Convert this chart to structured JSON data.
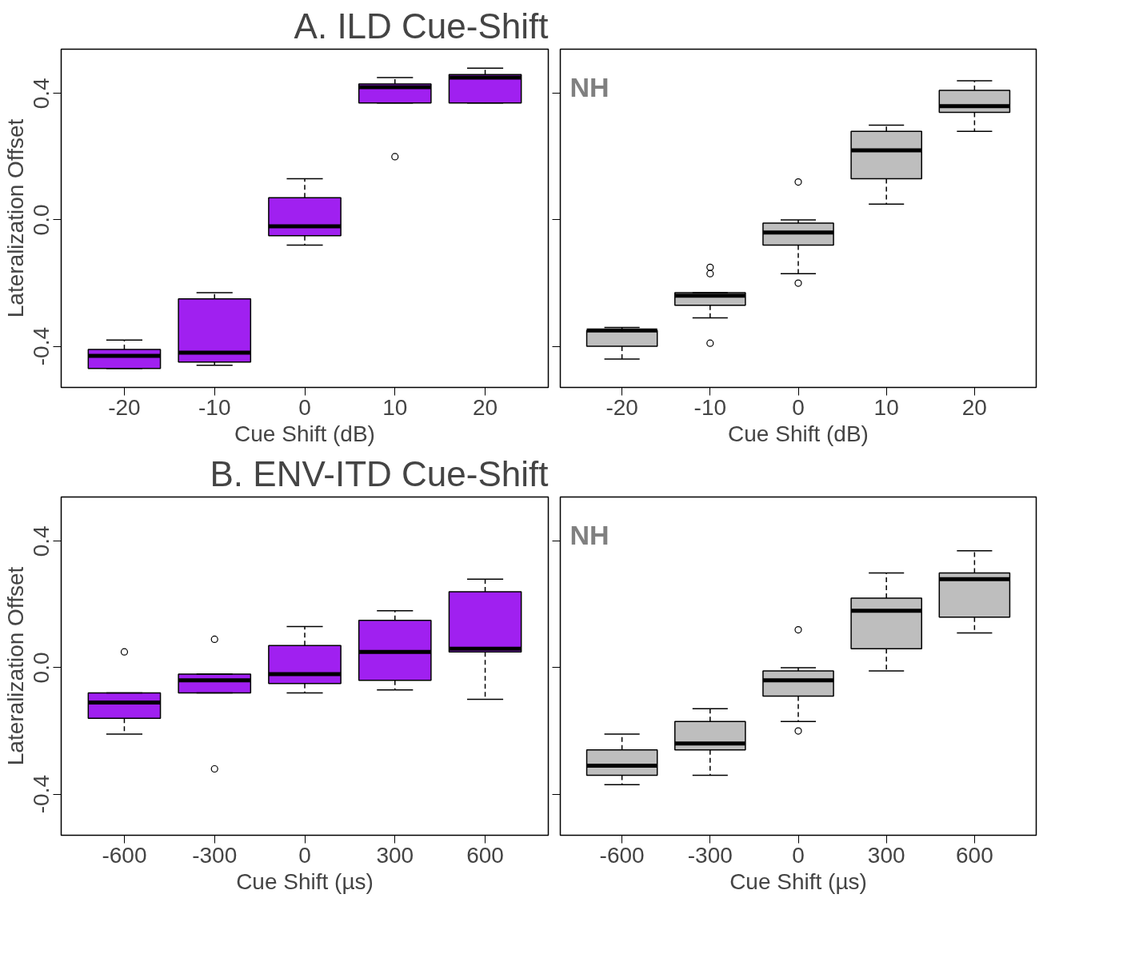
{
  "chart_data": [
    {
      "type": "box",
      "title": "A. ILD Cue-Shift",
      "xlabel": "Cue Shift (dB)",
      "ylabel": "Lateralization Offset",
      "categories": [
        "-20",
        "-10",
        "0",
        "10",
        "20"
      ],
      "color": "#a020f0",
      "ylim": [
        -0.53,
        0.54
      ],
      "yticks": [
        -0.4,
        {
          "value": 0,
          "label": "0.0"
        },
        0.4
      ],
      "grid": false,
      "boxes": [
        {
          "low": -0.47,
          "q1": -0.47,
          "median": -0.43,
          "q3": -0.41,
          "high": -0.38
        },
        {
          "low": -0.46,
          "q1": -0.45,
          "median": -0.42,
          "q3": -0.25,
          "high": -0.23
        },
        {
          "low": -0.08,
          "q1": -0.05,
          "median": -0.02,
          "q3": 0.07,
          "high": 0.13
        },
        {
          "low": 0.37,
          "q1": 0.37,
          "median": 0.42,
          "q3": 0.43,
          "high": 0.45,
          "outliers": [
            0.2
          ]
        },
        {
          "low": 0.37,
          "q1": 0.37,
          "median": 0.45,
          "q3": 0.46,
          "high": 0.48
        }
      ]
    },
    {
      "type": "box",
      "xlabel": "Cue Shift (dB)",
      "categories": [
        "-20",
        "-10",
        "0",
        "10",
        "20"
      ],
      "color": "#bebebe",
      "ylim": [
        -0.53,
        0.54
      ],
      "yticks": [
        -0.4,
        0,
        0.4
      ],
      "tick_labels": "x",
      "grid": false,
      "annotations": [
        "NH"
      ],
      "boxes": [
        {
          "low": -0.44,
          "q1": -0.4,
          "median": -0.35,
          "q3": -0.35,
          "high": -0.34
        },
        {
          "low": -0.31,
          "q1": -0.27,
          "median": -0.24,
          "q3": -0.23,
          "high": -0.23,
          "outliers": [
            -0.15,
            -0.17,
            -0.39
          ]
        },
        {
          "low": -0.17,
          "q1": -0.08,
          "median": -0.04,
          "q3": -0.01,
          "high": 0.0,
          "outliers": [
            0.12,
            -0.2
          ]
        },
        {
          "low": 0.05,
          "q1": 0.13,
          "median": 0.22,
          "q3": 0.28,
          "high": 0.3
        },
        {
          "low": 0.28,
          "q1": 0.34,
          "median": 0.36,
          "q3": 0.41,
          "high": 0.44
        }
      ]
    },
    {
      "type": "box",
      "title": "B. ENV-ITD Cue-Shift",
      "xlabel": "Cue Shift (µs)",
      "ylabel": "Lateralization Offset",
      "categories": [
        "-600",
        "-300",
        "0",
        "300",
        "600"
      ],
      "color": "#a020f0",
      "ylim": [
        -0.53,
        0.54
      ],
      "yticks": [
        -0.4,
        {
          "value": 0,
          "label": "0.0"
        },
        0.4
      ],
      "grid": false,
      "boxes": [
        {
          "low": -0.21,
          "q1": -0.16,
          "median": -0.11,
          "q3": -0.08,
          "high": -0.08,
          "outliers": [
            0.05
          ]
        },
        {
          "low": -0.08,
          "q1": -0.08,
          "median": -0.04,
          "q3": -0.02,
          "high": -0.02,
          "outliers": [
            0.09,
            -0.32
          ]
        },
        {
          "low": -0.08,
          "q1": -0.05,
          "median": -0.02,
          "q3": 0.07,
          "high": 0.13
        },
        {
          "low": -0.07,
          "q1": -0.04,
          "median": 0.05,
          "q3": 0.15,
          "high": 0.18
        },
        {
          "low": -0.1,
          "q1": 0.05,
          "median": 0.06,
          "q3": 0.24,
          "high": 0.28
        }
      ]
    },
    {
      "type": "box",
      "xlabel": "Cue Shift (µs)",
      "categories": [
        "-600",
        "-300",
        "0",
        "300",
        "600"
      ],
      "color": "#bebebe",
      "ylim": [
        -0.53,
        0.54
      ],
      "yticks": [
        -0.4,
        0,
        0.4
      ],
      "tick_labels": "x",
      "grid": false,
      "annotations": [
        "NH"
      ],
      "boxes": [
        {
          "low": -0.37,
          "q1": -0.34,
          "median": -0.31,
          "q3": -0.26,
          "high": -0.21
        },
        {
          "low": -0.34,
          "q1": -0.26,
          "median": -0.24,
          "q3": -0.17,
          "high": -0.13
        },
        {
          "low": -0.17,
          "q1": -0.09,
          "median": -0.04,
          "q3": -0.01,
          "high": 0.0,
          "outliers": [
            0.12,
            -0.2
          ]
        },
        {
          "low": -0.01,
          "q1": 0.06,
          "median": 0.18,
          "q3": 0.22,
          "high": 0.3
        },
        {
          "low": 0.11,
          "q1": 0.16,
          "median": 0.28,
          "q3": 0.3,
          "high": 0.37
        }
      ]
    }
  ]
}
